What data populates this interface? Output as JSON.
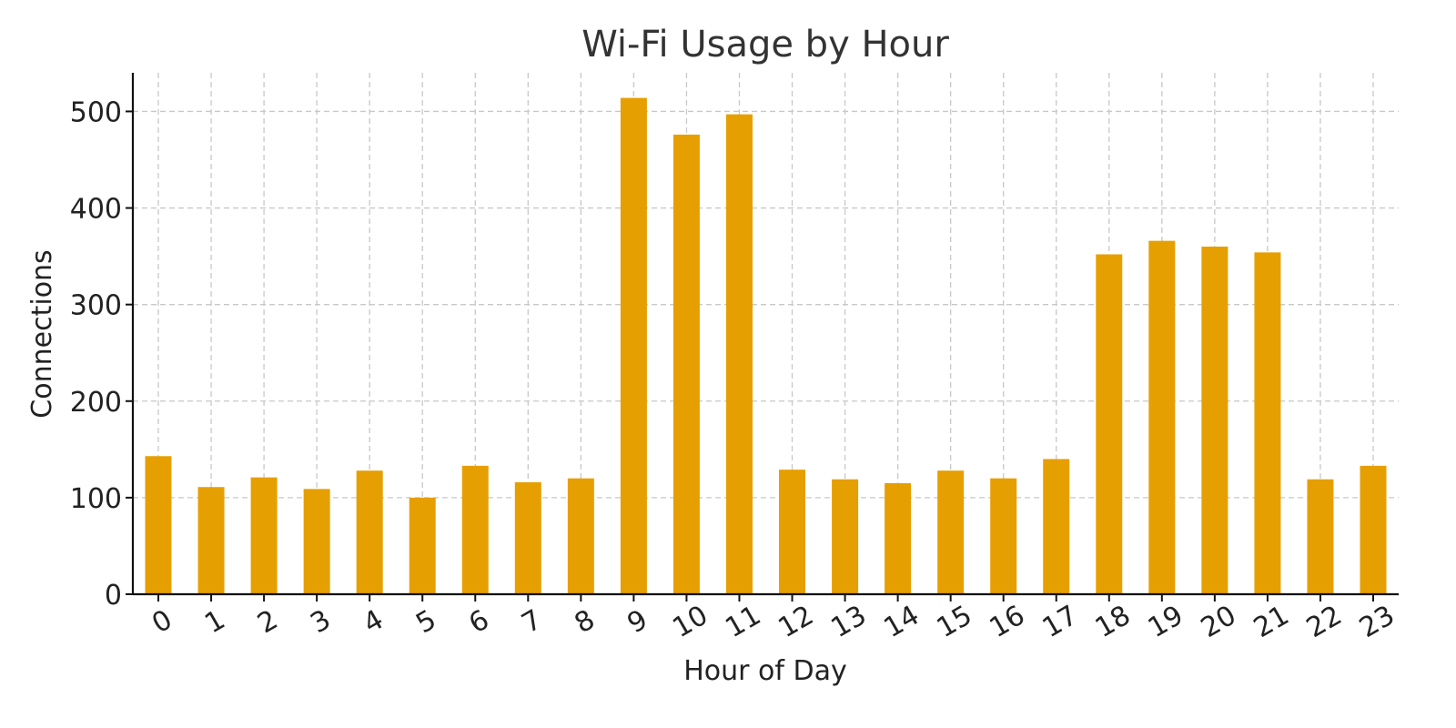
{
  "chart_data": {
    "type": "bar",
    "title": "Wi-Fi Usage by Hour",
    "xlabel": "Hour of Day",
    "ylabel": "Connections",
    "categories": [
      "0",
      "1",
      "2",
      "3",
      "4",
      "5",
      "6",
      "7",
      "8",
      "9",
      "10",
      "11",
      "12",
      "13",
      "14",
      "15",
      "16",
      "17",
      "18",
      "19",
      "20",
      "21",
      "22",
      "23"
    ],
    "values": [
      143,
      111,
      121,
      109,
      128,
      100,
      133,
      116,
      120,
      514,
      476,
      497,
      129,
      119,
      115,
      128,
      120,
      140,
      352,
      366,
      360,
      354,
      119,
      133
    ],
    "ylim": [
      0,
      540
    ],
    "yticks": [
      0,
      100,
      200,
      300,
      400,
      500
    ],
    "grid": true,
    "bar_color": "#E69F00"
  }
}
